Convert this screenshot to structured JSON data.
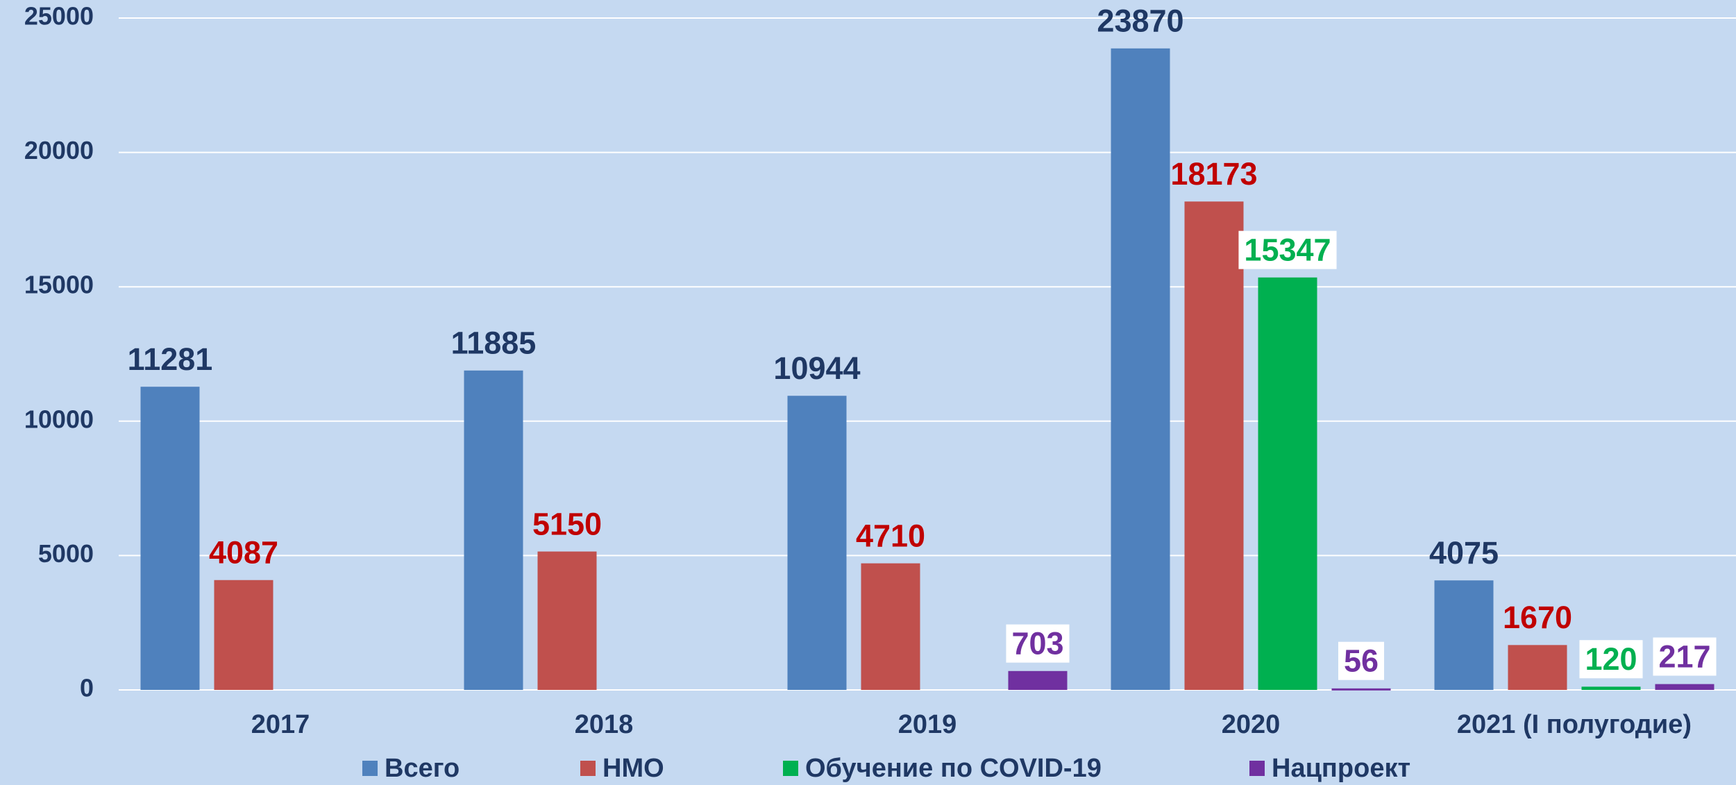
{
  "chart_data": {
    "type": "bar",
    "categories": [
      "2017",
      "2018",
      "2019",
      "2020",
      "2021 (I полугодие)"
    ],
    "series": [
      {
        "name": "Всего",
        "color": "#4f81bd",
        "label_color": "#1f3864",
        "values": [
          11281,
          11885,
          10944,
          23870,
          4075
        ]
      },
      {
        "name": "НМО",
        "color": "#c0504d",
        "label_color": "#c00000",
        "values": [
          4087,
          5150,
          4710,
          18173,
          1670
        ]
      },
      {
        "name": "Обучение по COVID-19",
        "color": "#00b050",
        "label_color": "#00b050",
        "label_background": "#ffffff",
        "values": [
          null,
          null,
          null,
          15347,
          120
        ]
      },
      {
        "name": "Нацпроект",
        "color": "#7030a0",
        "label_color": "#7030a0",
        "label_background": "#ffffff",
        "values": [
          null,
          null,
          703,
          56,
          217
        ]
      }
    ],
    "ylim": [
      0,
      25000
    ],
    "yticks": [
      0,
      5000,
      10000,
      15000,
      20000,
      25000
    ],
    "grid": true,
    "legend": "bottom",
    "background": "#c5d9f1"
  }
}
